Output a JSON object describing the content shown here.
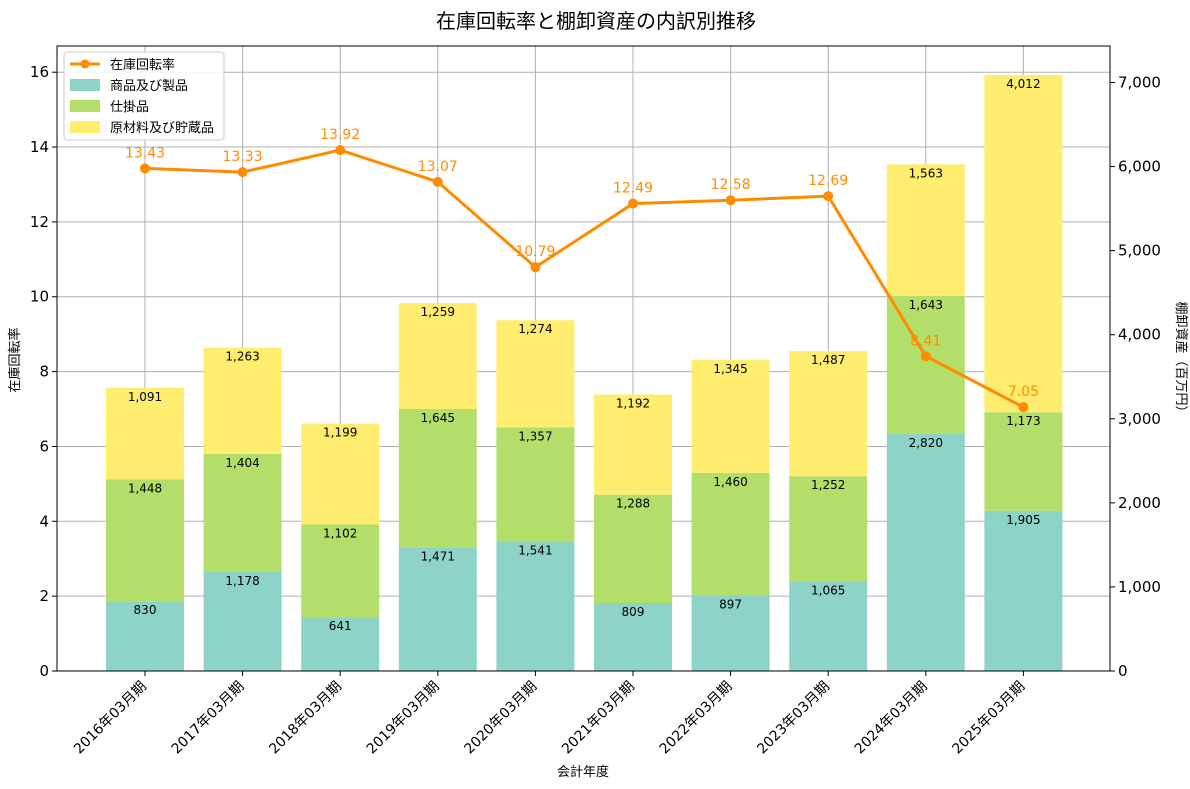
{
  "chart_data": {
    "type": "bar",
    "title": "在庫回転率と棚卸資産の内訳別推移",
    "xlabel": "会計年度",
    "ylabel_left": "在庫回転率",
    "ylabel_right": "棚卸資産（百万円）",
    "categories": [
      "2016年03月期",
      "2017年03月期",
      "2018年03月期",
      "2019年03月期",
      "2020年03月期",
      "2021年03月期",
      "2022年03月期",
      "2023年03月期",
      "2024年03月期",
      "2025年03月期"
    ],
    "stacked_series": [
      {
        "name": "商品及び製品",
        "color": "#8dd3c7",
        "values": [
          830,
          1178,
          641,
          1471,
          1541,
          809,
          897,
          1065,
          2820,
          1905
        ],
        "labels": [
          "830",
          "1,178",
          "641",
          "1,471",
          "1,541",
          "809",
          "897",
          "1,065",
          "2,820",
          "1,905"
        ]
      },
      {
        "name": "仕掛品",
        "color": "#b3de69",
        "values": [
          1448,
          1404,
          1102,
          1645,
          1357,
          1288,
          1460,
          1252,
          1643,
          1173
        ],
        "labels": [
          "1,448",
          "1,404",
          "1,102",
          "1,645",
          "1,357",
          "1,288",
          "1,460",
          "1,252",
          "1,643",
          "1,173"
        ]
      },
      {
        "name": "原材料及び貯蔵品",
        "color": "#ffed6f",
        "values": [
          1091,
          1263,
          1199,
          1259,
          1274,
          1192,
          1345,
          1487,
          1563,
          4012
        ],
        "labels": [
          "1,091",
          "1,263",
          "1,199",
          "1,259",
          "1,274",
          "1,192",
          "1,345",
          "1,487",
          "1,563",
          "4,012"
        ]
      }
    ],
    "line_series": {
      "name": "在庫回転率",
      "color": "#ff8c00",
      "values": [
        13.43,
        13.33,
        13.92,
        13.07,
        10.79,
        12.49,
        12.58,
        12.69,
        8.41,
        7.05
      ],
      "labels": [
        "13.43",
        "13.33",
        "13.92",
        "13.07",
        "10.79",
        "12.49",
        "12.58",
        "12.69",
        "8.41",
        "7.05"
      ]
    },
    "left_axis": {
      "ylim": [
        0,
        16.7
      ],
      "ticks": [
        0,
        2,
        4,
        6,
        8,
        10,
        12,
        14,
        16
      ],
      "tick_labels": [
        "0",
        "2",
        "4",
        "6",
        "8",
        "10",
        "12",
        "14",
        "16"
      ]
    },
    "right_axis": {
      "ylim": [
        0,
        7434
      ],
      "ticks": [
        0,
        1000,
        2000,
        3000,
        4000,
        5000,
        6000,
        7000
      ],
      "tick_labels": [
        "0",
        "1,000",
        "2,000",
        "3,000",
        "4,000",
        "5,000",
        "6,000",
        "7,000"
      ]
    },
    "grid": true,
    "legend": {
      "placement": "top-left",
      "entries": [
        "在庫回転率",
        "商品及び製品",
        "仕掛品",
        "原材料及び貯蔵品"
      ]
    }
  }
}
